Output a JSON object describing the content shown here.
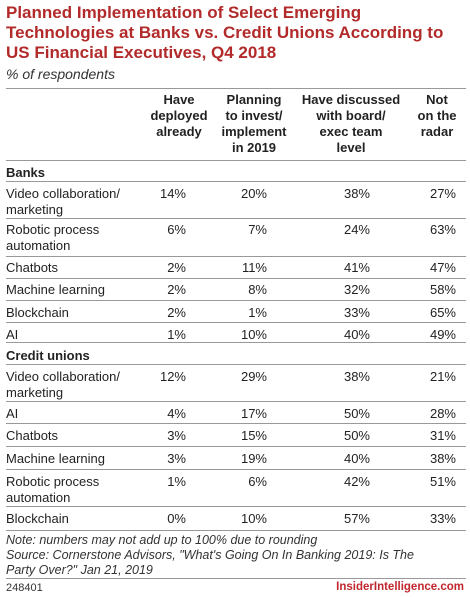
{
  "chart_data": {
    "type": "table",
    "title": "Planned Implementation of Select Emerging Technologies at Banks vs. Credit Unions According to US Financial Executives, Q4 2018",
    "subtitle": "% of respondents",
    "columns": [
      "Have deployed already",
      "Planning to invest/ implement in 2019",
      "Have discussed with board/ exec team level",
      "Not on the radar"
    ],
    "columns_lines": [
      [
        "Have",
        "deployed",
        "already"
      ],
      [
        "Planning",
        "to invest/",
        "implement",
        "in 2019"
      ],
      [
        "Have discussed",
        "with board/",
        "exec team",
        "level"
      ],
      [
        "Not",
        "on the",
        "radar"
      ]
    ],
    "groups": [
      {
        "name": "Banks",
        "rows": [
          {
            "label": "Video collaboration/ marketing",
            "label_lines": [
              "Video collaboration/",
              "marketing"
            ],
            "values": [
              "14%",
              "20%",
              "38%",
              "27%"
            ]
          },
          {
            "label": "Robotic process automation",
            "label_lines": [
              "Robotic process",
              "automation"
            ],
            "values": [
              "6%",
              "7%",
              "24%",
              "63%"
            ]
          },
          {
            "label": "Chatbots",
            "label_lines": [
              "Chatbots"
            ],
            "values": [
              "2%",
              "11%",
              "41%",
              "47%"
            ]
          },
          {
            "label": "Machine learning",
            "label_lines": [
              "Machine learning"
            ],
            "values": [
              "2%",
              "8%",
              "32%",
              "58%"
            ]
          },
          {
            "label": "Blockchain",
            "label_lines": [
              "Blockchain"
            ],
            "values": [
              "2%",
              "1%",
              "33%",
              "65%"
            ]
          },
          {
            "label": "AI",
            "label_lines": [
              "AI"
            ],
            "values": [
              "1%",
              "10%",
              "40%",
              "49%"
            ]
          }
        ]
      },
      {
        "name": "Credit unions",
        "rows": [
          {
            "label": "Video collaboration/ marketing",
            "label_lines": [
              "Video collaboration/",
              "marketing"
            ],
            "values": [
              "12%",
              "29%",
              "38%",
              "21%"
            ]
          },
          {
            "label": "AI",
            "label_lines": [
              "AI"
            ],
            "values": [
              "4%",
              "17%",
              "50%",
              "28%"
            ]
          },
          {
            "label": "Chatbots",
            "label_lines": [
              "Chatbots"
            ],
            "values": [
              "3%",
              "15%",
              "50%",
              "31%"
            ]
          },
          {
            "label": "Machine learning",
            "label_lines": [
              "Machine learning"
            ],
            "values": [
              "3%",
              "19%",
              "40%",
              "38%"
            ]
          },
          {
            "label": "Robotic process automation",
            "label_lines": [
              "Robotic process",
              "automation"
            ],
            "values": [
              "1%",
              "6%",
              "42%",
              "51%"
            ]
          },
          {
            "label": "Blockchain",
            "label_lines": [
              "Blockchain"
            ],
            "values": [
              "0%",
              "10%",
              "57%",
              "33%"
            ]
          }
        ]
      }
    ],
    "note_lines": [
      "Note: numbers may not add up to 100% due to rounding",
      "Source: Cornerstone Advisors, \"What's Going On In Banking 2019: Is The",
      "Party Over?\" Jan 21, 2019"
    ],
    "footer_id": "248401",
    "brand": "InsiderIntelligence.com"
  }
}
